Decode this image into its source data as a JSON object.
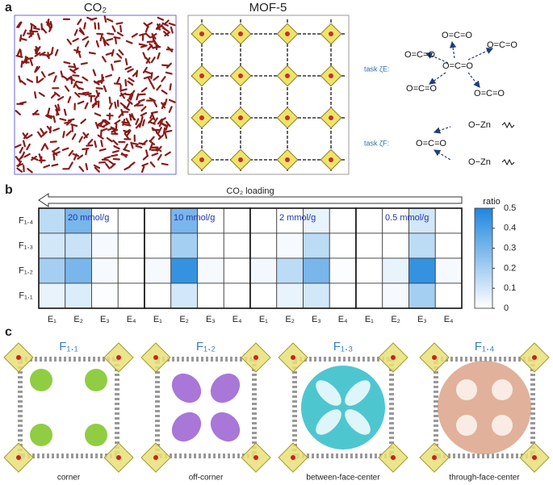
{
  "figure": {
    "label_a": "a",
    "label_b": "b",
    "label_c": "c",
    "co2_title": "CO₂",
    "mof_title": "MOF-5",
    "task_e": "task ζE:",
    "task_f": "task ζF:",
    "molecule": "O=C=O",
    "zn_link": "O−Zn",
    "panel_c": [
      {
        "title": "F₁.₁",
        "caption": "corner"
      },
      {
        "title": "F₁.₂",
        "caption": "off-corner"
      },
      {
        "title": "F₁.₃",
        "caption": "between-face-center"
      },
      {
        "title": "F₁.₄",
        "caption": "through-face-center"
      }
    ]
  },
  "chart_data": {
    "type": "heatmap",
    "loading_label": "CO₂ loading",
    "rows": [
      "F₁.₄",
      "F₁.₃",
      "F₁.₂",
      "F₁.₁"
    ],
    "columns": [
      "E₁",
      "E₂",
      "E₃",
      "E₄"
    ],
    "groups": [
      {
        "name": "20 mmol/g",
        "values": [
          [
            0.15,
            0.3,
            0,
            0
          ],
          [
            0.1,
            0.12,
            0.02,
            0
          ],
          [
            0.2,
            0.3,
            0.02,
            0
          ],
          [
            0.05,
            0.08,
            0.01,
            0
          ]
        ]
      },
      {
        "name": "10 mmol/g",
        "values": [
          [
            0,
            0.3,
            0,
            0
          ],
          [
            0,
            0.2,
            0,
            0
          ],
          [
            0.02,
            0.45,
            0.02,
            0
          ],
          [
            0,
            0.1,
            0,
            0
          ]
        ]
      },
      {
        "name": "2 mmol/g",
        "values": [
          [
            0,
            0,
            0.05,
            0
          ],
          [
            0,
            0.02,
            0.15,
            0
          ],
          [
            0.03,
            0.15,
            0.3,
            0.01
          ],
          [
            0,
            0.05,
            0.1,
            0
          ]
        ]
      },
      {
        "name": "0.5 mmol/g",
        "values": [
          [
            0,
            0,
            0.1,
            0
          ],
          [
            0,
            0,
            0.15,
            0
          ],
          [
            0,
            0.05,
            0.45,
            0.02
          ],
          [
            0,
            0.02,
            0.2,
            0
          ]
        ]
      }
    ],
    "colorbar_label": "ratio",
    "zlim": [
      0,
      0.5
    ],
    "zticks": [
      0,
      0.1,
      0.2,
      0.3,
      0.4,
      0.5
    ],
    "colormap": [
      "#ffffff",
      "#1f86de"
    ]
  }
}
